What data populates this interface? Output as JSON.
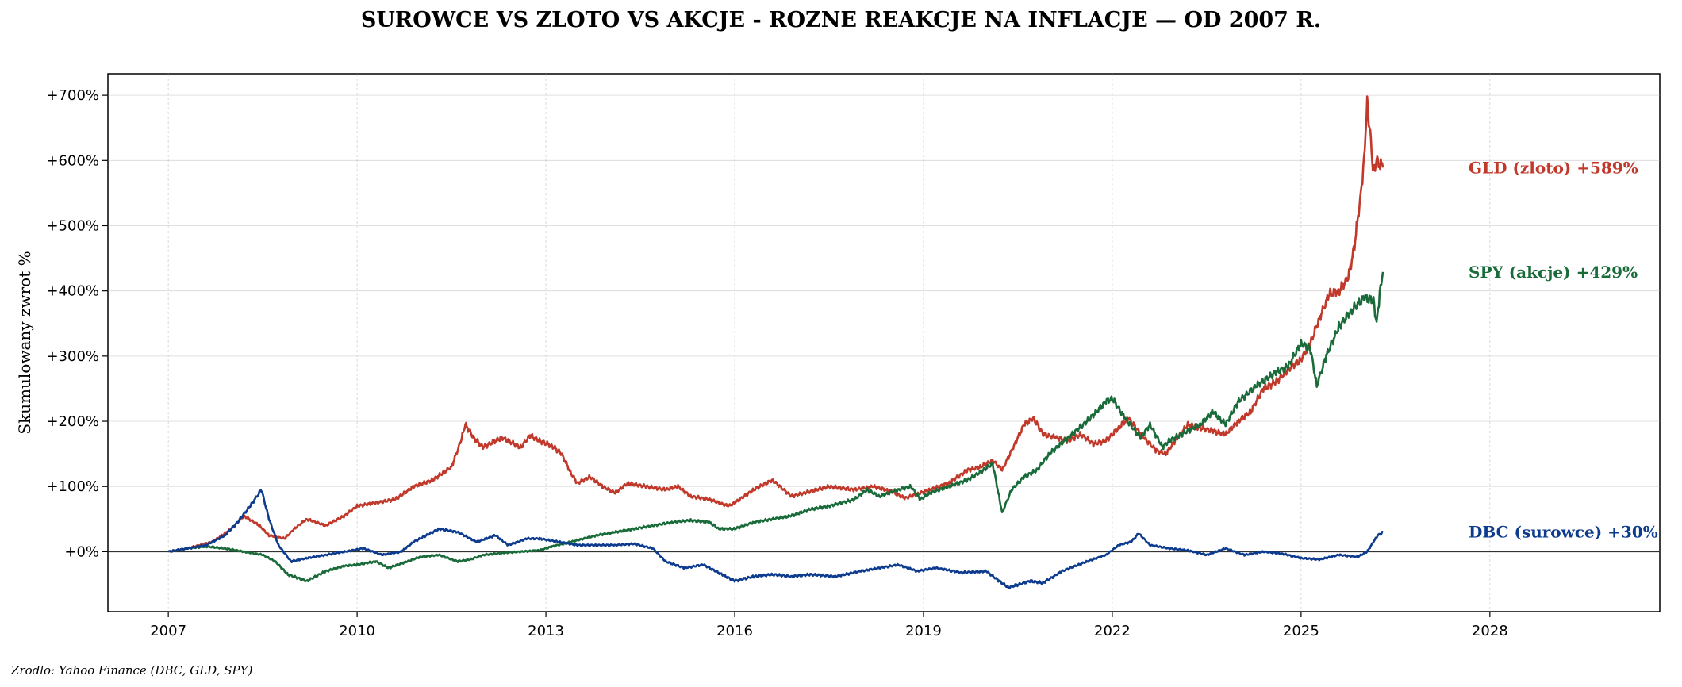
{
  "chart_data": {
    "type": "line",
    "title": "SUROWCE VS ZLOTO VS AKCJE - ROZNE REAKCJE NA INFLACJE — OD 2007 R.",
    "ylabel": "Skumulowany zwrot %",
    "xlabel": "",
    "source": "Zrodlo: Yahoo Finance (DBC, GLD, SPY)",
    "xlim": [
      2006.04,
      2030.7
    ],
    "ylim": [
      -92,
      733
    ],
    "x_ticks": [
      2007,
      2010,
      2013,
      2016,
      2019,
      2022,
      2025,
      2028
    ],
    "x_tick_labels": [
      "2007",
      "2010",
      "2013",
      "2016",
      "2019",
      "2022",
      "2025",
      "2028"
    ],
    "y_ticks": [
      0,
      100,
      200,
      300,
      400,
      500,
      600,
      700
    ],
    "y_tick_labels": [
      "+0%",
      "+100%",
      "+200%",
      "+300%",
      "+400%",
      "+500%",
      "+600%",
      "+700%"
    ],
    "grid": true,
    "zero_line": true,
    "legend": "none",
    "series": [
      {
        "name": "GLD (zloto)",
        "end_label": "GLD (zloto)  +589%",
        "color": "#c0392b",
        "points": [
          [
            2007.0,
            0
          ],
          [
            2007.3,
            5
          ],
          [
            2007.7,
            15
          ],
          [
            2008.0,
            35
          ],
          [
            2008.2,
            55
          ],
          [
            2008.45,
            40
          ],
          [
            2008.6,
            25
          ],
          [
            2008.85,
            20
          ],
          [
            2009.0,
            35
          ],
          [
            2009.2,
            50
          ],
          [
            2009.5,
            40
          ],
          [
            2009.8,
            55
          ],
          [
            2010.0,
            70
          ],
          [
            2010.3,
            75
          ],
          [
            2010.6,
            80
          ],
          [
            2010.9,
            100
          ],
          [
            2011.2,
            110
          ],
          [
            2011.5,
            130
          ],
          [
            2011.65,
            170
          ],
          [
            2011.72,
            195
          ],
          [
            2011.85,
            175
          ],
          [
            2012.0,
            160
          ],
          [
            2012.3,
            175
          ],
          [
            2012.6,
            160
          ],
          [
            2012.75,
            178
          ],
          [
            2012.9,
            170
          ],
          [
            2013.1,
            162
          ],
          [
            2013.25,
            150
          ],
          [
            2013.4,
            120
          ],
          [
            2013.5,
            105
          ],
          [
            2013.7,
            115
          ],
          [
            2013.9,
            100
          ],
          [
            2014.1,
            90
          ],
          [
            2014.3,
            105
          ],
          [
            2014.6,
            100
          ],
          [
            2014.9,
            95
          ],
          [
            2015.1,
            100
          ],
          [
            2015.3,
            85
          ],
          [
            2015.6,
            80
          ],
          [
            2015.9,
            70
          ],
          [
            2016.0,
            75
          ],
          [
            2016.3,
            95
          ],
          [
            2016.6,
            110
          ],
          [
            2016.9,
            85
          ],
          [
            2017.1,
            90
          ],
          [
            2017.5,
            100
          ],
          [
            2017.9,
            95
          ],
          [
            2018.2,
            100
          ],
          [
            2018.5,
            92
          ],
          [
            2018.7,
            82
          ],
          [
            2018.9,
            88
          ],
          [
            2019.1,
            95
          ],
          [
            2019.4,
            105
          ],
          [
            2019.7,
            125
          ],
          [
            2019.9,
            130
          ],
          [
            2020.1,
            140
          ],
          [
            2020.25,
            125
          ],
          [
            2020.45,
            165
          ],
          [
            2020.6,
            195
          ],
          [
            2020.75,
            205
          ],
          [
            2020.9,
            180
          ],
          [
            2021.1,
            175
          ],
          [
            2021.3,
            170
          ],
          [
            2021.5,
            180
          ],
          [
            2021.7,
            165
          ],
          [
            2021.9,
            170
          ],
          [
            2022.1,
            190
          ],
          [
            2022.25,
            205
          ],
          [
            2022.5,
            175
          ],
          [
            2022.7,
            155
          ],
          [
            2022.85,
            150
          ],
          [
            2023.0,
            170
          ],
          [
            2023.2,
            195
          ],
          [
            2023.4,
            190
          ],
          [
            2023.6,
            185
          ],
          [
            2023.8,
            180
          ],
          [
            2024.0,
            200
          ],
          [
            2024.2,
            215
          ],
          [
            2024.4,
            250
          ],
          [
            2024.6,
            260
          ],
          [
            2024.8,
            280
          ],
          [
            2025.0,
            295
          ],
          [
            2025.15,
            320
          ],
          [
            2025.3,
            360
          ],
          [
            2025.45,
            395
          ],
          [
            2025.6,
            400
          ],
          [
            2025.75,
            420
          ],
          [
            2025.85,
            470
          ],
          [
            2025.95,
            550
          ],
          [
            2026.0,
            600
          ],
          [
            2026.05,
            690
          ],
          [
            2026.1,
            640
          ],
          [
            2026.15,
            580
          ],
          [
            2026.2,
            600
          ],
          [
            2026.3,
            589
          ]
        ]
      },
      {
        "name": "SPY (akcje)",
        "end_label": "SPY (akcje)  +429%",
        "color": "#1a6b3a",
        "points": [
          [
            2007.0,
            0
          ],
          [
            2007.3,
            5
          ],
          [
            2007.6,
            8
          ],
          [
            2007.9,
            5
          ],
          [
            2008.2,
            0
          ],
          [
            2008.5,
            -5
          ],
          [
            2008.7,
            -15
          ],
          [
            2008.9,
            -35
          ],
          [
            2009.2,
            -45
          ],
          [
            2009.5,
            -30
          ],
          [
            2009.8,
            -22
          ],
          [
            2010.0,
            -20
          ],
          [
            2010.3,
            -15
          ],
          [
            2010.5,
            -25
          ],
          [
            2010.8,
            -15
          ],
          [
            2011.0,
            -8
          ],
          [
            2011.3,
            -5
          ],
          [
            2011.6,
            -15
          ],
          [
            2011.8,
            -12
          ],
          [
            2012.0,
            -5
          ],
          [
            2012.3,
            -2
          ],
          [
            2012.6,
            0
          ],
          [
            2012.9,
            2
          ],
          [
            2013.1,
            8
          ],
          [
            2013.4,
            15
          ],
          [
            2013.8,
            25
          ],
          [
            2014.1,
            30
          ],
          [
            2014.4,
            35
          ],
          [
            2014.7,
            40
          ],
          [
            2015.0,
            45
          ],
          [
            2015.3,
            48
          ],
          [
            2015.6,
            45
          ],
          [
            2015.75,
            35
          ],
          [
            2016.0,
            35
          ],
          [
            2016.3,
            45
          ],
          [
            2016.6,
            50
          ],
          [
            2016.9,
            55
          ],
          [
            2017.2,
            65
          ],
          [
            2017.5,
            70
          ],
          [
            2017.9,
            80
          ],
          [
            2018.1,
            95
          ],
          [
            2018.3,
            85
          ],
          [
            2018.6,
            95
          ],
          [
            2018.8,
            100
          ],
          [
            2018.95,
            80
          ],
          [
            2019.1,
            90
          ],
          [
            2019.4,
            100
          ],
          [
            2019.7,
            110
          ],
          [
            2019.95,
            125
          ],
          [
            2020.1,
            135
          ],
          [
            2020.2,
            85
          ],
          [
            2020.25,
            60
          ],
          [
            2020.4,
            95
          ],
          [
            2020.6,
            115
          ],
          [
            2020.8,
            125
          ],
          [
            2021.0,
            150
          ],
          [
            2021.3,
            175
          ],
          [
            2021.6,
            200
          ],
          [
            2021.9,
            230
          ],
          [
            2022.0,
            235
          ],
          [
            2022.2,
            205
          ],
          [
            2022.45,
            175
          ],
          [
            2022.6,
            195
          ],
          [
            2022.8,
            160
          ],
          [
            2022.9,
            170
          ],
          [
            2023.1,
            180
          ],
          [
            2023.4,
            195
          ],
          [
            2023.6,
            215
          ],
          [
            2023.8,
            195
          ],
          [
            2024.0,
            230
          ],
          [
            2024.3,
            255
          ],
          [
            2024.6,
            275
          ],
          [
            2024.8,
            285
          ],
          [
            2025.0,
            320
          ],
          [
            2025.15,
            310
          ],
          [
            2025.25,
            255
          ],
          [
            2025.4,
            300
          ],
          [
            2025.6,
            345
          ],
          [
            2025.8,
            370
          ],
          [
            2026.0,
            390
          ],
          [
            2026.15,
            385
          ],
          [
            2026.2,
            350
          ],
          [
            2026.25,
            395
          ],
          [
            2026.3,
            429
          ]
        ]
      },
      {
        "name": "DBC (surowce)",
        "end_label": "DBC (surowce)  +30%",
        "color": "#0d3b8e",
        "points": [
          [
            2007.0,
            0
          ],
          [
            2007.3,
            5
          ],
          [
            2007.6,
            10
          ],
          [
            2007.9,
            25
          ],
          [
            2008.1,
            45
          ],
          [
            2008.3,
            70
          ],
          [
            2008.48,
            95
          ],
          [
            2008.6,
            50
          ],
          [
            2008.75,
            10
          ],
          [
            2008.95,
            -15
          ],
          [
            2009.2,
            -10
          ],
          [
            2009.5,
            -5
          ],
          [
            2009.8,
            0
          ],
          [
            2010.1,
            5
          ],
          [
            2010.4,
            -5
          ],
          [
            2010.7,
            0
          ],
          [
            2010.9,
            15
          ],
          [
            2011.1,
            25
          ],
          [
            2011.3,
            35
          ],
          [
            2011.6,
            30
          ],
          [
            2011.9,
            15
          ],
          [
            2012.2,
            25
          ],
          [
            2012.4,
            10
          ],
          [
            2012.7,
            20
          ],
          [
            2012.9,
            20
          ],
          [
            2013.2,
            15
          ],
          [
            2013.5,
            10
          ],
          [
            2013.8,
            10
          ],
          [
            2014.1,
            10
          ],
          [
            2014.4,
            12
          ],
          [
            2014.7,
            5
          ],
          [
            2014.9,
            -15
          ],
          [
            2015.2,
            -25
          ],
          [
            2015.5,
            -20
          ],
          [
            2015.8,
            -35
          ],
          [
            2016.0,
            -45
          ],
          [
            2016.3,
            -38
          ],
          [
            2016.6,
            -35
          ],
          [
            2016.9,
            -38
          ],
          [
            2017.2,
            -35
          ],
          [
            2017.6,
            -38
          ],
          [
            2018.0,
            -30
          ],
          [
            2018.3,
            -25
          ],
          [
            2018.6,
            -20
          ],
          [
            2018.9,
            -30
          ],
          [
            2019.2,
            -25
          ],
          [
            2019.6,
            -32
          ],
          [
            2020.0,
            -30
          ],
          [
            2020.2,
            -45
          ],
          [
            2020.35,
            -55
          ],
          [
            2020.7,
            -45
          ],
          [
            2020.9,
            -48
          ],
          [
            2021.2,
            -30
          ],
          [
            2021.6,
            -15
          ],
          [
            2021.9,
            -5
          ],
          [
            2022.1,
            10
          ],
          [
            2022.3,
            15
          ],
          [
            2022.42,
            28
          ],
          [
            2022.6,
            10
          ],
          [
            2022.9,
            5
          ],
          [
            2023.2,
            2
          ],
          [
            2023.5,
            -5
          ],
          [
            2023.8,
            5
          ],
          [
            2024.1,
            -5
          ],
          [
            2024.4,
            0
          ],
          [
            2024.7,
            -3
          ],
          [
            2025.0,
            -10
          ],
          [
            2025.3,
            -12
          ],
          [
            2025.6,
            -5
          ],
          [
            2025.9,
            -8
          ],
          [
            2026.05,
            0
          ],
          [
            2026.15,
            15
          ],
          [
            2026.22,
            25
          ],
          [
            2026.3,
            30
          ]
        ]
      }
    ]
  }
}
